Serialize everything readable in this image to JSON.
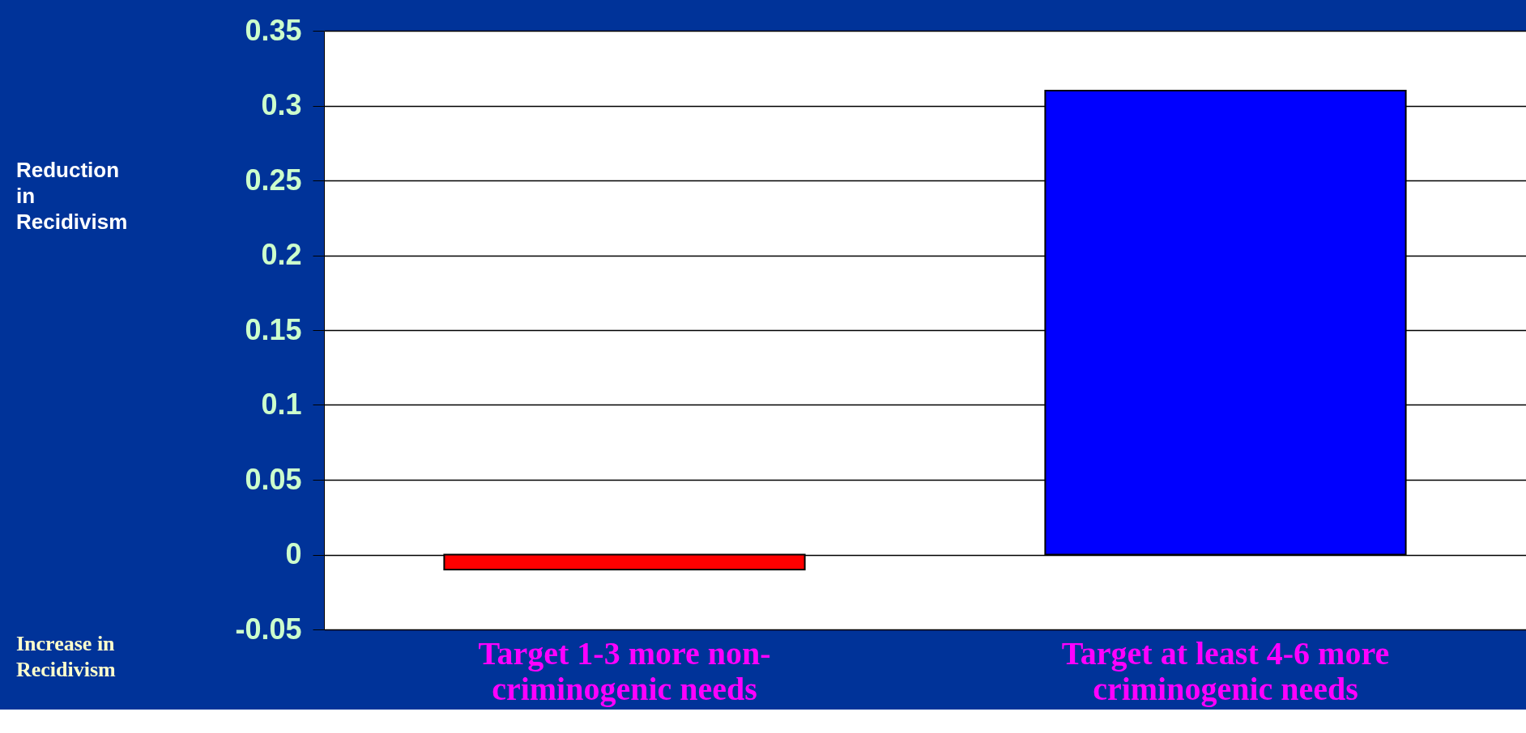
{
  "chart_data": {
    "type": "bar",
    "categories": [
      "Target 1-3 more non-\ncriminogenic needs",
      "Target at least 4-6 more\ncriminogenic needs"
    ],
    "values": [
      -0.01,
      0.31
    ],
    "colors": [
      "#ff0000",
      "#0000ff"
    ],
    "annotations": [
      "Reduction in Recidivism",
      "Increase in Recidivism"
    ],
    "ylim": [
      -0.05,
      0.35
    ],
    "yticks": [
      -0.05,
      0,
      0.05,
      0.1,
      0.15,
      0.2,
      0.25,
      0.3,
      0.35
    ],
    "grid": "y"
  }
}
